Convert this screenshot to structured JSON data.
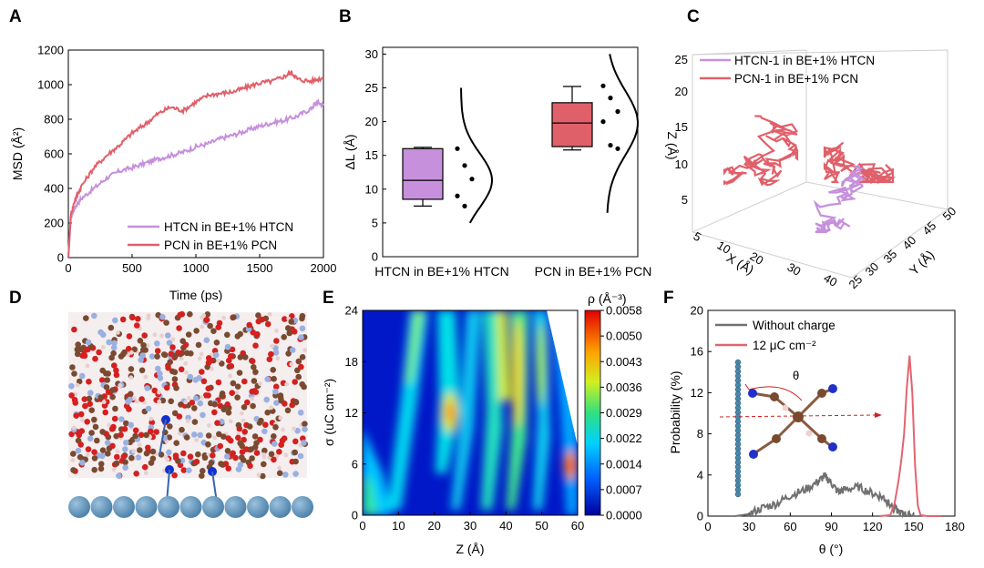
{
  "colors": {
    "htcn": "#c690dc",
    "pcn": "#e0606a",
    "gray": "#707070",
    "red_line": "#e06570"
  },
  "panel_labels": [
    "A",
    "B",
    "C",
    "D",
    "E",
    "F"
  ],
  "chart_data": [
    {
      "panel": "A",
      "type": "line",
      "xlabel": "Time (ps)",
      "ylabel": "MSD (Å²)",
      "xlim": [
        0,
        2000
      ],
      "ylim": [
        0,
        1200
      ],
      "xticks": [
        "0",
        "500",
        "1000",
        "1500",
        "2000"
      ],
      "yticks": [
        "0",
        "200",
        "400",
        "600",
        "800",
        "1000",
        "1200"
      ],
      "series": [
        {
          "name": "HTCN in BE+1% HTCN",
          "color": "#c690dc",
          "x": [
            0,
            20,
            50,
            100,
            200,
            300,
            400,
            500,
            600,
            700,
            800,
            900,
            1000,
            1100,
            1200,
            1300,
            1400,
            1500,
            1600,
            1700,
            1800,
            1900,
            1950,
            2000
          ],
          "y": [
            0,
            230,
            290,
            340,
            400,
            460,
            500,
            520,
            545,
            570,
            590,
            610,
            640,
            660,
            690,
            710,
            735,
            760,
            780,
            795,
            820,
            860,
            900,
            880
          ]
        },
        {
          "name": "PCN in BE+1% PCN",
          "color": "#e0606a",
          "x": [
            0,
            20,
            50,
            100,
            200,
            300,
            400,
            500,
            600,
            700,
            800,
            900,
            1000,
            1100,
            1200,
            1300,
            1400,
            1500,
            1600,
            1700,
            1750,
            1800,
            1900,
            2000
          ],
          "y": [
            0,
            250,
            330,
            410,
            520,
            590,
            650,
            720,
            770,
            830,
            870,
            850,
            900,
            940,
            950,
            960,
            985,
            1010,
            1020,
            1050,
            1070,
            1030,
            1020,
            1040
          ]
        }
      ]
    },
    {
      "panel": "B",
      "type": "box",
      "ylabel": "ΔL (Å)",
      "ylim": [
        0,
        31
      ],
      "yticks": [
        "0",
        "5",
        "10",
        "15",
        "20",
        "25",
        "30"
      ],
      "categories": [
        "HTCN in BE+1% HTCN",
        "PCN in BE+1% PCN"
      ],
      "boxes": [
        {
          "name": "HTCN in BE+1% HTCN",
          "color": "#c690dc",
          "min": 7.5,
          "q1": 8.5,
          "median": 11.3,
          "q3": 16,
          "max": 16.2,
          "points": [
            16,
            13.5,
            11.5,
            9,
            7.5
          ],
          "curve_range": [
            5,
            25
          ]
        },
        {
          "name": "PCN in BE+1% PCN",
          "color": "#e0606a",
          "min": 15.8,
          "q1": 16.3,
          "median": 19.8,
          "q3": 22.8,
          "max": 25.2,
          "points": [
            25.3,
            23.5,
            21.5,
            20,
            16.5,
            16
          ],
          "curve_range": [
            6.5,
            30
          ]
        }
      ]
    },
    {
      "panel": "C",
      "type": "3d-line",
      "zlabel": "Z (Å)",
      "xlabel": "X (Å)",
      "ylabel": "Y (Å)",
      "z_ticks": [
        "25",
        "20",
        "15",
        "10",
        "5"
      ],
      "x_ticks": [
        "5",
        "10",
        "20",
        "30",
        "40"
      ],
      "y_ticks": [
        "25",
        "30",
        "35",
        "40",
        "45",
        "50"
      ],
      "legend": [
        "HTCN-1 in BE+1% HTCN",
        "PCN-1 in BE+1% PCN"
      ]
    },
    {
      "panel": "E",
      "type": "heatmap",
      "xlabel": "Z (Å)",
      "ylabel": "σ (uC cm⁻²)",
      "xticks": [
        "0",
        "10",
        "20",
        "30",
        "40",
        "50",
        "60"
      ],
      "yticks": [
        "0",
        "6",
        "12",
        "18",
        "24"
      ],
      "colorbar_title": "ρ (Å⁻³)",
      "colorbar_ticks": [
        "0.0058",
        "0.0050",
        "0.0043",
        "0.0036",
        "0.0029",
        "0.0022",
        "0.0014",
        "0.0007",
        "0.0000"
      ]
    },
    {
      "panel": "F",
      "type": "line",
      "xlabel": "θ (°)",
      "ylabel": "Probability (%)",
      "xlim": [
        0,
        180
      ],
      "ylim": [
        0,
        20
      ],
      "xticks": [
        "0",
        "30",
        "60",
        "90",
        "120",
        "150",
        "180"
      ],
      "yticks": [
        "0",
        "4",
        "8",
        "12",
        "16",
        "20"
      ],
      "inset_label": "θ",
      "series": [
        {
          "name": "Without charge",
          "color": "#707070",
          "x": [
            20,
            30,
            40,
            50,
            60,
            70,
            80,
            85,
            90,
            95,
            100,
            110,
            120,
            128,
            132,
            140,
            145,
            150
          ],
          "y": [
            0,
            0.2,
            0.8,
            1.2,
            2.0,
            2.5,
            3.3,
            3.9,
            3.2,
            2.3,
            2.6,
            2.8,
            2.2,
            1.8,
            1.2,
            0.3,
            0.1,
            0
          ]
        },
        {
          "name": "12 μC cm⁻²",
          "color": "#e06570",
          "x": [
            125,
            133,
            136,
            139,
            141,
            143,
            145,
            147,
            149,
            151,
            153,
            155,
            160,
            170
          ],
          "y": [
            0,
            0.1,
            1.2,
            3.5,
            5.5,
            8.0,
            12.5,
            15.6,
            12.0,
            5.0,
            1.0,
            0.1,
            0,
            0
          ]
        }
      ]
    }
  ]
}
